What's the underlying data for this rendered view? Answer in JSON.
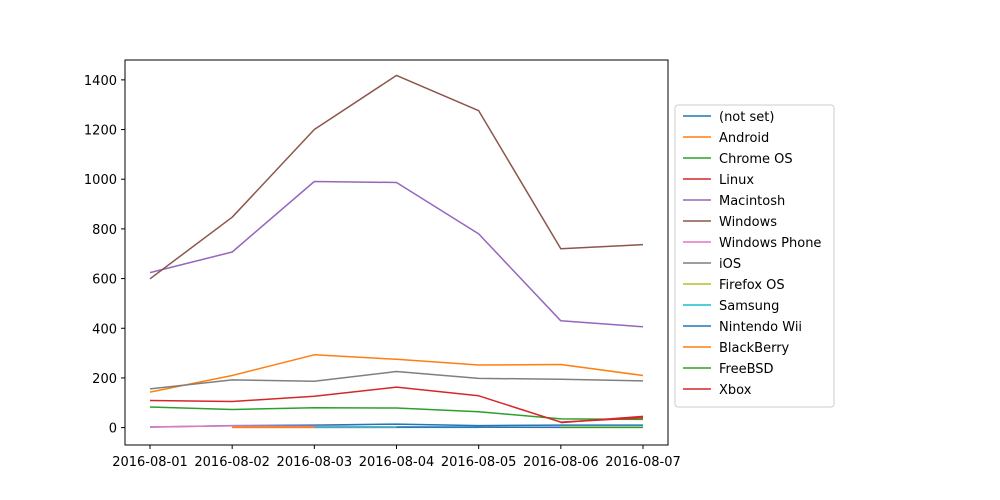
{
  "chart_data": {
    "type": "line",
    "title": "",
    "xlabel": "",
    "ylabel": "",
    "categories": [
      "2016-08-01",
      "2016-08-02",
      "2016-08-03",
      "2016-08-04",
      "2016-08-05",
      "2016-08-06",
      "2016-08-07"
    ],
    "ylim": [
      -70,
      1480
    ],
    "yticks": [
      0,
      200,
      400,
      600,
      800,
      1000,
      1200,
      1400
    ],
    "grid": false,
    "legend_position": "right",
    "series": [
      {
        "name": "(not set)",
        "color": "#1f77b4",
        "values": [
          2,
          8,
          10,
          14,
          8,
          10,
          10
        ]
      },
      {
        "name": "Android",
        "color": "#ff7f0e",
        "values": [
          143,
          210,
          293,
          275,
          252,
          254,
          210
        ]
      },
      {
        "name": "Chrome OS",
        "color": "#2ca02c",
        "values": [
          83,
          73,
          80,
          79,
          64,
          35,
          33
        ]
      },
      {
        "name": "Linux",
        "color": "#d62728",
        "values": [
          109,
          105,
          126,
          163,
          128,
          22,
          40
        ]
      },
      {
        "name": "Macintosh",
        "color": "#9467bd",
        "values": [
          624,
          707,
          991,
          987,
          780,
          430,
          406
        ]
      },
      {
        "name": "Windows",
        "color": "#8c564b",
        "values": [
          599,
          847,
          1200,
          1418,
          1276,
          720,
          737
        ]
      },
      {
        "name": "Windows Phone",
        "color": "#e377c2",
        "values": [
          3,
          7,
          5,
          3,
          2,
          2,
          2
        ]
      },
      {
        "name": "iOS",
        "color": "#7f7f7f",
        "values": [
          156,
          192,
          187,
          226,
          198,
          195,
          188
        ]
      },
      {
        "name": "Firefox OS",
        "color": "#bcbd22",
        "values": [
          null,
          1,
          1,
          1,
          null,
          1,
          1
        ]
      },
      {
        "name": "Samsung",
        "color": "#17becf",
        "values": [
          null,
          null,
          1,
          1,
          1,
          null,
          null
        ]
      },
      {
        "name": "Nintendo Wii",
        "color": "#1f77b4",
        "values": [
          null,
          null,
          null,
          2,
          2,
          1,
          null
        ]
      },
      {
        "name": "BlackBerry",
        "color": "#ff7f0e",
        "values": [
          null,
          1,
          1,
          null,
          null,
          null,
          null
        ]
      },
      {
        "name": "FreeBSD",
        "color": "#2ca02c",
        "values": [
          null,
          null,
          null,
          null,
          null,
          1,
          1
        ]
      },
      {
        "name": "Xbox",
        "color": "#d62728",
        "values": [
          null,
          null,
          null,
          null,
          null,
          20,
          45
        ]
      }
    ]
  }
}
